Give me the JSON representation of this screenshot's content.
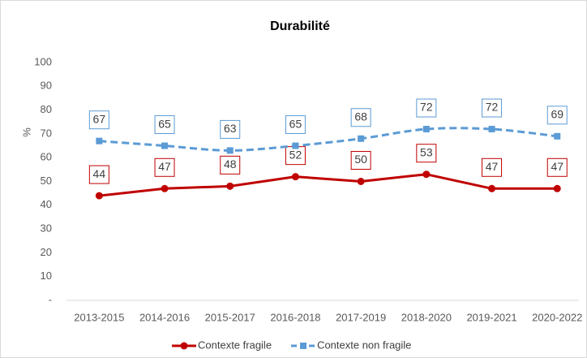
{
  "chart_data": {
    "type": "line",
    "title": "Durabilité",
    "y_label": "%",
    "categories": [
      "2013-2015",
      "2014-2016",
      "2015-2017",
      "2016-2018",
      "2017-2019",
      "2018-2020",
      "2019-2021",
      "2020-2022"
    ],
    "series": [
      {
        "name": "Contexte fragile",
        "color": "#c00000",
        "dashed": false,
        "smooth": false,
        "marker": "circle",
        "values": [
          44,
          47,
          48,
          52,
          50,
          53,
          47,
          47
        ]
      },
      {
        "name": "Contexte non fragile",
        "color": "#5b9bd5",
        "dashed": true,
        "smooth": true,
        "marker": "square",
        "values": [
          67,
          65,
          63,
          65,
          68,
          72,
          72,
          69
        ]
      }
    ],
    "ylim": [
      0,
      100
    ],
    "yticks": [
      {
        "value": 0,
        "label": "-"
      },
      10,
      20,
      30,
      40,
      50,
      60,
      70,
      80,
      90,
      100
    ],
    "grid": false,
    "legend": "bottom"
  }
}
